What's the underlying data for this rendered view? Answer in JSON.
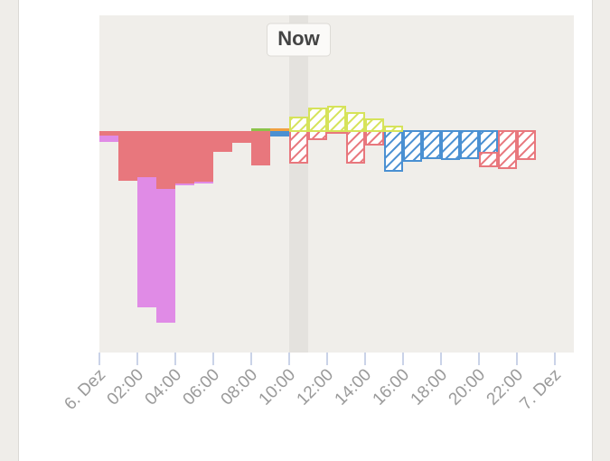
{
  "chart_data": {
    "type": "bar",
    "stacked": true,
    "x": [
      0,
      1,
      2,
      3,
      4,
      5,
      6,
      7,
      8,
      9,
      10,
      11,
      12,
      13,
      14,
      15,
      16,
      17,
      18,
      19,
      20,
      21,
      22,
      23
    ],
    "xlim": [
      0,
      25
    ],
    "xticks": [
      {
        "value": 0,
        "label": "6. Dez"
      },
      {
        "value": 2,
        "label": "02:00"
      },
      {
        "value": 4,
        "label": "04:00"
      },
      {
        "value": 6,
        "label": "06:00"
      },
      {
        "value": 8,
        "label": "08:00"
      },
      {
        "value": 10,
        "label": "10:00"
      },
      {
        "value": 12,
        "label": "12:00"
      },
      {
        "value": 14,
        "label": "14:00"
      },
      {
        "value": 16,
        "label": "16:00"
      },
      {
        "value": 18,
        "label": "18:00"
      },
      {
        "value": 20,
        "label": "20:00"
      },
      {
        "value": 22,
        "label": "22:00"
      },
      {
        "value": 24,
        "label": "7. Dez"
      }
    ],
    "ylim": [
      -2.45,
      1.28
    ],
    "now": {
      "label": "Now",
      "index": 10
    },
    "series": [
      {
        "color": "#4a90d2",
        "values": [
          null,
          null,
          null,
          null,
          null,
          null,
          null,
          null,
          null,
          -0.06,
          null,
          null,
          null,
          null,
          null,
          -0.44,
          -0.33,
          -0.3,
          -0.31,
          -0.3,
          -0.24,
          null,
          null,
          null
        ]
      },
      {
        "color": "#e8777d",
        "values": [
          -0.05,
          -0.55,
          -0.51,
          -0.64,
          -0.58,
          -0.56,
          -0.23,
          -0.13,
          -0.38,
          null,
          -0.35,
          -0.09,
          -0.02,
          -0.35,
          -0.15,
          null,
          null,
          null,
          null,
          null,
          -0.15,
          -0.41,
          -0.31,
          null
        ]
      },
      {
        "color": "#e08be6",
        "values": [
          -0.07,
          null,
          -1.44,
          -1.48,
          -0.02,
          -0.02,
          null,
          null,
          null,
          null,
          null,
          null,
          null,
          null,
          null,
          null,
          null,
          null,
          null,
          null,
          null,
          null,
          null,
          null
        ]
      },
      {
        "color": "#8bc34a",
        "values": [
          null,
          null,
          null,
          null,
          null,
          null,
          null,
          null,
          0.03,
          null,
          null,
          null,
          null,
          null,
          null,
          null,
          null,
          null,
          null,
          null,
          null,
          null,
          null,
          null
        ]
      },
      {
        "color": "#f0a040",
        "values": [
          null,
          null,
          null,
          null,
          null,
          null,
          null,
          null,
          null,
          0.03,
          null,
          null,
          null,
          null,
          null,
          null,
          null,
          null,
          null,
          null,
          null,
          null,
          null,
          null
        ]
      },
      {
        "color": "#d6e35a",
        "values": [
          null,
          null,
          null,
          null,
          null,
          null,
          null,
          null,
          null,
          null,
          0.15,
          0.25,
          0.27,
          0.2,
          0.13,
          0.05,
          null,
          null,
          null,
          null,
          null,
          null,
          null,
          null
        ]
      }
    ]
  }
}
